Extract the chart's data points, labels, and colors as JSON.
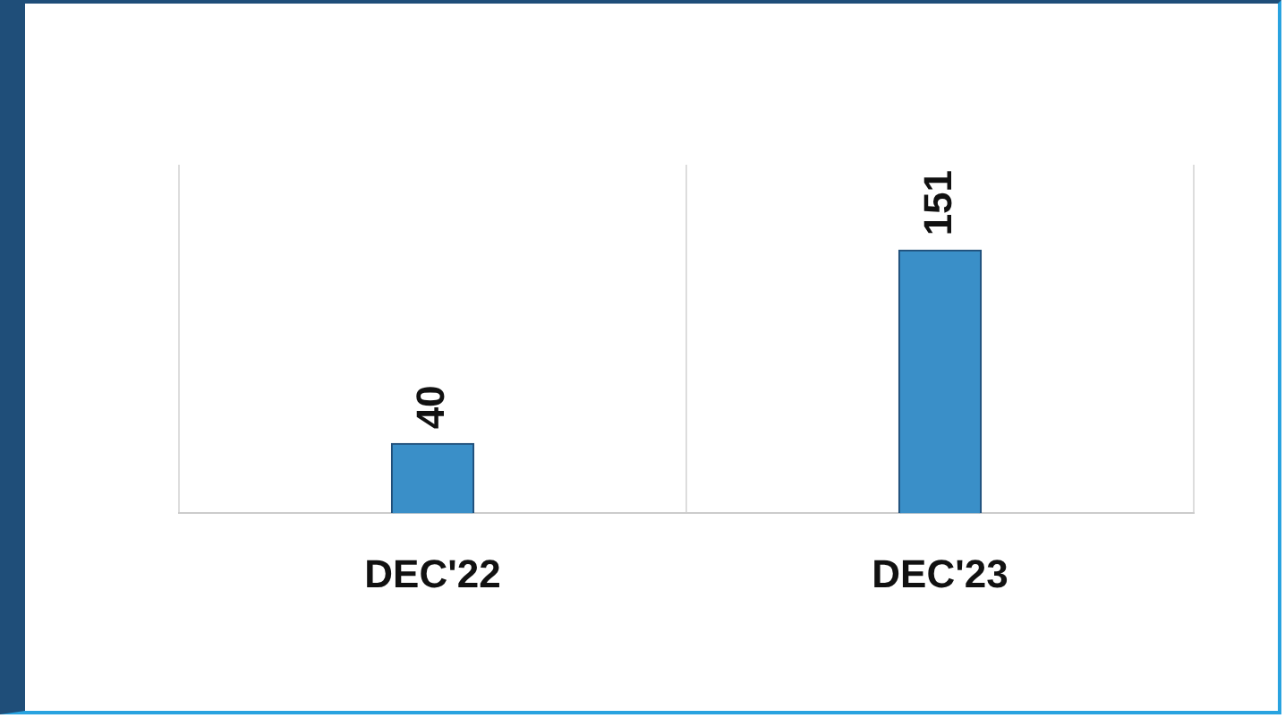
{
  "chart_data": {
    "type": "bar",
    "categories": [
      "DEC'22",
      "DEC'23"
    ],
    "values": [
      40,
      151
    ],
    "color": "#3a8fc8",
    "ylim": [
      0,
      200
    ],
    "tick_labels": "x",
    "data_labels": true,
    "grid": "x",
    "legend": false
  }
}
